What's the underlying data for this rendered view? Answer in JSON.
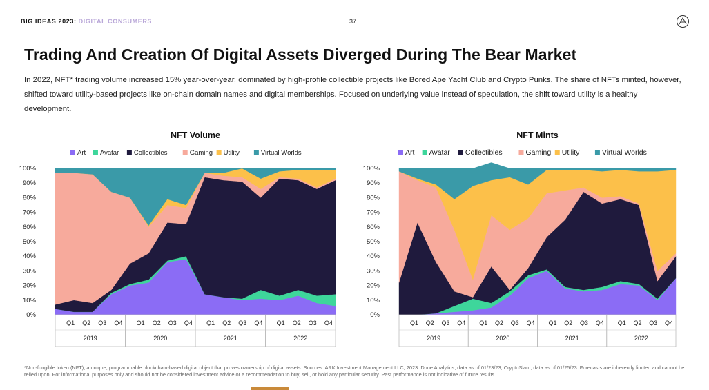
{
  "header": {
    "report": "BIG IDEAS 2023",
    "separator": ":",
    "section": "DIGITAL CONSUMERS",
    "page_number": "37"
  },
  "title": "Trading And Creation Of Digital Assets Diverged During The Bear Market",
  "intro": "In 2022, NFT* trading volume increased 15% year-over-year, dominated by high-profile collectible projects like Bored Ape Yacht Club and Crypto Punks. The share of NFTs minted, however, shifted toward utility-based projects like on-chain domain names and digital memberships. Focused on underlying value instead of speculation, the shift toward utility is a healthy development.",
  "footnote": "*Non-fungible token (NFT), a unique, programmable blockchain-based digital object that proves ownership of digital assets. Sources: ARK Investment Management LLC, 2023. Dune Analytics, data as of 01/23/23; CryptoSlam, data as of 01/25/23. Forecasts are inherently limited and cannot be relied upon. For informational purposes only and should not be considered investment advice or a recommendation to buy, sell, or hold any particular security. Past performance is not indicative of future results.",
  "colors": {
    "Art": "#8b6cf5",
    "Avatar": "#3ed69b",
    "Collectibles": "#1f1a3d",
    "Gaming": "#f7aa9c",
    "Utility": "#fcc04a",
    "Virtual Worlds": "#3a9aa8"
  },
  "chart_data": [
    {
      "type": "area",
      "stacked": true,
      "title": "NFT Volume",
      "xlabel": "",
      "ylabel": "",
      "ylim": [
        0,
        100
      ],
      "yticks": [
        "0%",
        "10%",
        "20%",
        "30%",
        "40%",
        "50%",
        "60%",
        "70%",
        "80%",
        "90%",
        "100%"
      ],
      "x": [
        "Q1 2019",
        "Q2 2019",
        "Q3 2019",
        "Q4 2019",
        "Q1 2020",
        "Q2 2020",
        "Q3 2020",
        "Q4 2020",
        "Q1 2021",
        "Q2 2021",
        "Q3 2021",
        "Q4 2021",
        "Q1 2022",
        "Q2 2022",
        "Q3 2022",
        "Q4 2022"
      ],
      "quarters": [
        "Q1",
        "Q2",
        "Q3",
        "Q4"
      ],
      "years": [
        "2019",
        "2020",
        "2021",
        "2022"
      ],
      "legend": [
        "Art",
        "Avatar",
        "Collectibles",
        "Gaming",
        "Utility",
        "Virtual Worlds"
      ],
      "series": [
        {
          "name": "Art",
          "values": [
            4,
            2,
            2,
            14,
            20,
            22,
            36,
            38,
            14,
            12,
            10,
            11,
            10,
            13,
            8,
            6
          ]
        },
        {
          "name": "Avatar",
          "values": [
            0,
            0,
            0,
            1,
            1,
            2,
            1,
            2,
            0,
            0,
            1,
            6,
            3,
            4,
            5,
            8
          ]
        },
        {
          "name": "Collectibles",
          "values": [
            3,
            8,
            6,
            2,
            14,
            18,
            26,
            22,
            80,
            80,
            80,
            63,
            80,
            75,
            73,
            78
          ]
        },
        {
          "name": "Gaming",
          "values": [
            90,
            87,
            88,
            67,
            45,
            18,
            12,
            11,
            3,
            3,
            3,
            6,
            1,
            1,
            1,
            1
          ]
        },
        {
          "name": "Utility",
          "values": [
            0,
            0,
            0,
            0,
            0,
            1,
            4,
            2,
            0,
            2,
            6,
            7,
            4,
            6,
            12,
            6
          ]
        },
        {
          "name": "Virtual Worlds",
          "values": [
            3,
            3,
            4,
            16,
            20,
            39,
            21,
            25,
            3,
            3,
            0,
            7,
            2,
            1,
            1,
            1
          ]
        }
      ]
    },
    {
      "type": "area",
      "stacked": true,
      "title": "NFT Mints",
      "xlabel": "",
      "ylabel": "",
      "ylim": [
        0,
        100
      ],
      "yticks": [
        "0%",
        "10%",
        "20%",
        "30%",
        "40%",
        "50%",
        "60%",
        "70%",
        "80%",
        "90%",
        "100%"
      ],
      "x": [
        "Q1 2019",
        "Q2 2019",
        "Q3 2019",
        "Q4 2019",
        "Q1 2020",
        "Q2 2020",
        "Q3 2020",
        "Q4 2020",
        "Q1 2021",
        "Q2 2021",
        "Q3 2021",
        "Q4 2021",
        "Q1 2022",
        "Q2 2022",
        "Q3 2022",
        "Q4 2022"
      ],
      "quarters": [
        "Q1",
        "Q2",
        "Q3",
        "Q4"
      ],
      "years": [
        "2019",
        "2020",
        "2021",
        "2022"
      ],
      "legend": [
        "Art",
        "Avatar",
        "Collectibles",
        "Gaming",
        "Utility",
        "Virtual Worlds"
      ],
      "series": [
        {
          "name": "Art",
          "values": [
            0,
            0,
            1,
            2,
            3,
            5,
            13,
            25,
            30,
            18,
            16,
            17,
            21,
            20,
            10,
            25
          ]
        },
        {
          "name": "Avatar",
          "values": [
            0,
            0,
            0,
            4,
            8,
            3,
            3,
            2,
            1,
            1,
            1,
            2,
            2,
            1,
            1,
            0
          ]
        },
        {
          "name": "Collectibles",
          "values": [
            22,
            63,
            35,
            10,
            1,
            25,
            1,
            5,
            22,
            46,
            67,
            57,
            56,
            54,
            12,
            15
          ]
        },
        {
          "name": "Gaming",
          "values": [
            76,
            29,
            51,
            42,
            12,
            35,
            41,
            34,
            30,
            20,
            3,
            4,
            2,
            1,
            7,
            2
          ]
        },
        {
          "name": "Utility",
          "values": [
            0,
            1,
            2,
            21,
            64,
            24,
            36,
            23,
            16,
            14,
            12,
            18,
            18,
            22,
            68,
            57
          ]
        },
        {
          "name": "Virtual Worlds",
          "values": [
            2,
            7,
            11,
            21,
            12,
            12,
            6,
            11,
            1,
            1,
            1,
            2,
            1,
            2,
            2,
            1
          ]
        }
      ]
    }
  ]
}
